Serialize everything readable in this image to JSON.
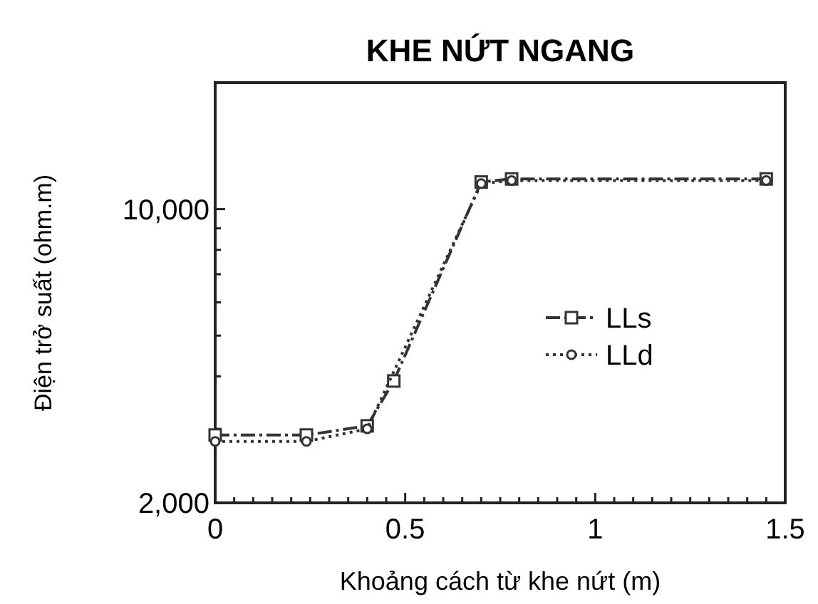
{
  "chart_data": {
    "type": "line",
    "title": "KHE NỨT NGANG",
    "xlabel": "Khoảng cách từ khe nứt (m)",
    "ylabel": "Điện trở suất (ohm.m)",
    "log": "y",
    "xlim": [
      0,
      1.5
    ],
    "ylim": [
      2000,
      20000
    ],
    "xticks": [
      0,
      {
        "value": 0.05,
        "label": null
      },
      {
        "value": 0.1,
        "label": null
      },
      {
        "value": 0.15,
        "label": null
      },
      {
        "value": 0.2,
        "label": null
      },
      {
        "value": 0.25,
        "label": null
      },
      {
        "value": 0.3,
        "label": null
      },
      {
        "value": 0.35,
        "label": null
      },
      {
        "value": 0.4,
        "label": null
      },
      {
        "value": 0.45,
        "label": null
      },
      0.5,
      {
        "value": 0.55,
        "label": null
      },
      {
        "value": 0.6,
        "label": null
      },
      {
        "value": 0.65,
        "label": null
      },
      {
        "value": 0.7,
        "label": null
      },
      {
        "value": 0.75,
        "label": null
      },
      {
        "value": 0.8,
        "label": null
      },
      {
        "value": 0.85,
        "label": null
      },
      {
        "value": 0.9,
        "label": null
      },
      {
        "value": 0.95,
        "label": null
      },
      1,
      {
        "value": 1.05,
        "label": null
      },
      {
        "value": 1.1,
        "label": null
      },
      {
        "value": 1.15,
        "label": null
      },
      {
        "value": 1.2,
        "label": null
      },
      {
        "value": 1.25,
        "label": null
      },
      {
        "value": 1.3,
        "label": null
      },
      {
        "value": 1.35,
        "label": null
      },
      {
        "value": 1.4,
        "label": null
      },
      {
        "value": 1.45,
        "label": null
      },
      1.5
    ],
    "yticks": [
      {
        "value": 2000,
        "label": "2,000"
      },
      {
        "value": 3000,
        "label": null
      },
      {
        "value": 4000,
        "label": null
      },
      {
        "value": 5000,
        "label": null
      },
      {
        "value": 6000,
        "label": null
      },
      {
        "value": 7000,
        "label": null
      },
      {
        "value": 8000,
        "label": null
      },
      {
        "value": 9000,
        "label": null
      },
      {
        "value": 10000,
        "label": "10,000"
      }
    ],
    "grid": false,
    "legend": "right",
    "series": [
      {
        "name": "LLs",
        "color": "#333333",
        "marker": "square",
        "line_style": "dashdot",
        "x": [
          0,
          0.24,
          0.4,
          0.47,
          0.7,
          0.78,
          1.45
        ],
        "values": [
          2900,
          2900,
          3050,
          3900,
          11600,
          11800,
          11800
        ]
      },
      {
        "name": "LLd",
        "color": "#333333",
        "marker": "circle",
        "line_style": "dotted",
        "x": [
          0,
          0.24,
          0.4,
          0.47,
          0.7,
          0.78,
          1.45
        ],
        "values": [
          2800,
          2800,
          3000,
          null,
          11500,
          11700,
          11700
        ]
      }
    ]
  }
}
